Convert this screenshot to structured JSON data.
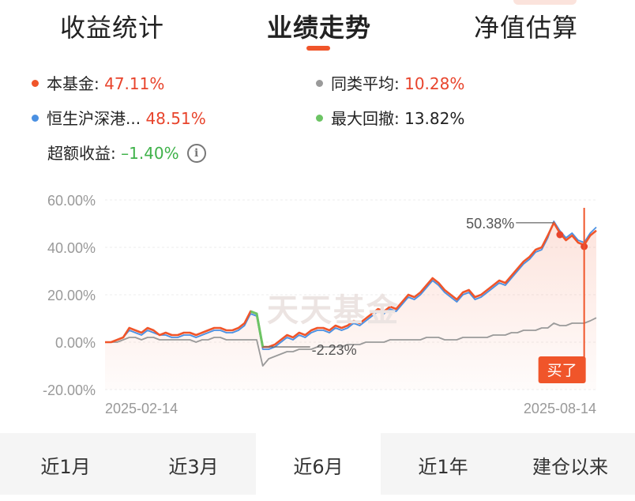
{
  "tabs": [
    {
      "label": "收益统计"
    },
    {
      "label": "业绩走势"
    },
    {
      "label": "净值估算"
    }
  ],
  "legend": {
    "fund": {
      "label": "本基金: ",
      "value": "47.11%",
      "color": "#f0552a"
    },
    "category_avg": {
      "label": "同类平均: ",
      "value": "10.28%",
      "color": "#9a9a9a"
    },
    "benchmark": {
      "label": "恒生沪深港... ",
      "value": "48.51%",
      "color": "#4a90e2"
    },
    "max_drawdown": {
      "label": "最大回撤: ",
      "value": "13.82%",
      "color": "#6cc464"
    },
    "excess_return": {
      "label": "超额收益: ",
      "value": "–1.40%"
    }
  },
  "watermark": "天天基金",
  "chart_data": {
    "type": "line",
    "y_ticks": [
      "60.00%",
      "40.00%",
      "20.00%",
      "0.00%",
      "-20.00%"
    ],
    "ylim": [
      -20,
      60
    ],
    "x_tick_labels": [
      "2025-02-14",
      "2025-08-14"
    ],
    "annotations": {
      "max_label": "50.38%",
      "min_label": "-2.23%",
      "buy_label": "买了"
    },
    "series": [
      {
        "name": "本基金",
        "color": "#f0552a",
        "values": [
          0,
          0,
          1,
          2,
          6,
          5,
          4,
          6,
          5,
          3,
          4,
          3,
          3,
          4,
          4,
          3,
          4,
          5,
          6,
          6,
          5,
          5,
          6,
          8,
          13,
          12,
          -2,
          -2,
          -1,
          1,
          3,
          2,
          4,
          3,
          5,
          6,
          6,
          5,
          7,
          6,
          7,
          9,
          8,
          10,
          12,
          14,
          13,
          15,
          14,
          17,
          20,
          19,
          21,
          24,
          27,
          25,
          22,
          20,
          18,
          21,
          22,
          19,
          20,
          22,
          24,
          26,
          25,
          28,
          31,
          34,
          36,
          39,
          40,
          45,
          50.38,
          46,
          43,
          45,
          42,
          41,
          45,
          47.11
        ]
      },
      {
        "name": "恒生沪深港...",
        "color": "#4a90e2",
        "values": [
          0,
          0,
          1,
          2,
          5,
          4,
          3,
          5,
          4,
          3,
          3,
          2,
          2,
          3,
          3,
          2,
          3,
          4,
          5,
          5,
          4,
          4,
          5,
          7,
          12,
          11,
          -3,
          -3,
          -2,
          0,
          2,
          1,
          3,
          2,
          4,
          5,
          5,
          4,
          6,
          5,
          6,
          8,
          7,
          9,
          11,
          13,
          12,
          14,
          13,
          16,
          19,
          18,
          20,
          23,
          26,
          24,
          21,
          19,
          17,
          20,
          21,
          18,
          19,
          21,
          23,
          25,
          24,
          27,
          30,
          33,
          35,
          38,
          39,
          44,
          51,
          47,
          44,
          46,
          43,
          42,
          46,
          48.51
        ]
      },
      {
        "name": "同类平均",
        "color": "#9a9a9a",
        "values": [
          0,
          0,
          0,
          1,
          2,
          2,
          1,
          2,
          2,
          1,
          1,
          1,
          1,
          1,
          1,
          0,
          1,
          1,
          2,
          2,
          1,
          1,
          1,
          1,
          1,
          1,
          -10,
          -7,
          -6,
          -5,
          -4,
          -4,
          -3,
          -3,
          -3,
          -2,
          -2,
          -2,
          -2,
          -2,
          -1,
          -1,
          -1,
          0,
          0,
          0,
          0,
          1,
          1,
          1,
          1,
          1,
          1,
          2,
          2,
          2,
          1,
          1,
          1,
          2,
          2,
          2,
          2,
          2,
          3,
          3,
          3,
          4,
          4,
          5,
          5,
          5,
          6,
          6,
          8,
          7,
          7,
          8,
          8,
          8,
          9,
          10.28
        ]
      }
    ]
  },
  "periods": [
    {
      "label": "近1月"
    },
    {
      "label": "近3月"
    },
    {
      "label": "近6月"
    },
    {
      "label": "近1年"
    },
    {
      "label": "建仓以来"
    }
  ]
}
